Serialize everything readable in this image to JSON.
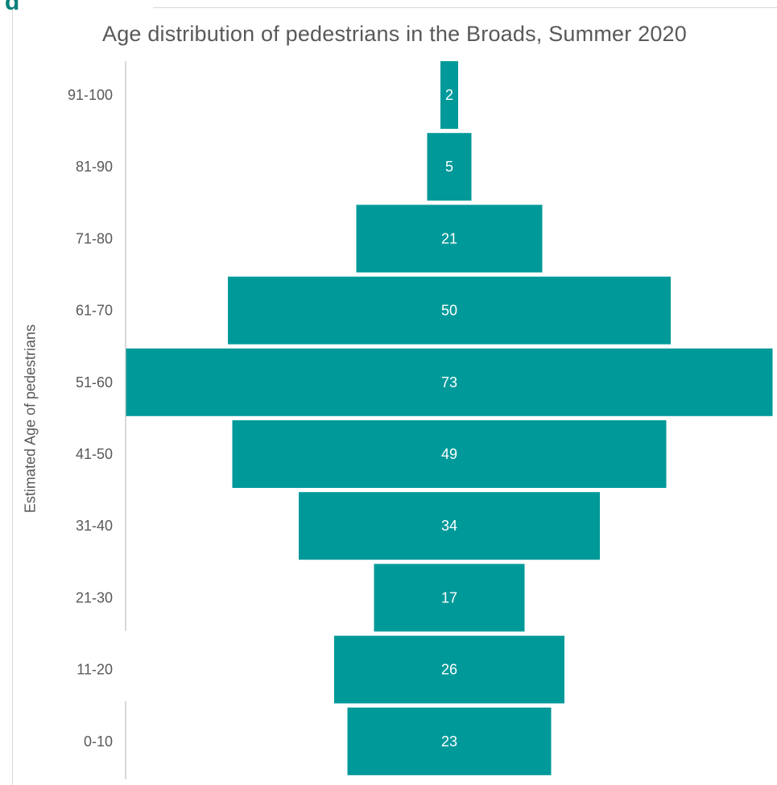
{
  "chart_data": {
    "type": "bar",
    "orientation": "horizontal-centered",
    "title": "Age distribution of pedestrians in the Broads, Summer 2020",
    "ylabel": "Estimated Age of pedestrians",
    "xlabel": "",
    "categories": [
      "91-100",
      "81-90",
      "71-80",
      "61-70",
      "51-60",
      "41-50",
      "31-40",
      "21-30",
      "11-20",
      "0-10"
    ],
    "values": [
      2,
      5,
      21,
      50,
      73,
      49,
      34,
      17,
      26,
      23
    ],
    "bar_color": "#009999",
    "grid": false,
    "legend": "none"
  },
  "page": {
    "heading_fragment": "g"
  }
}
